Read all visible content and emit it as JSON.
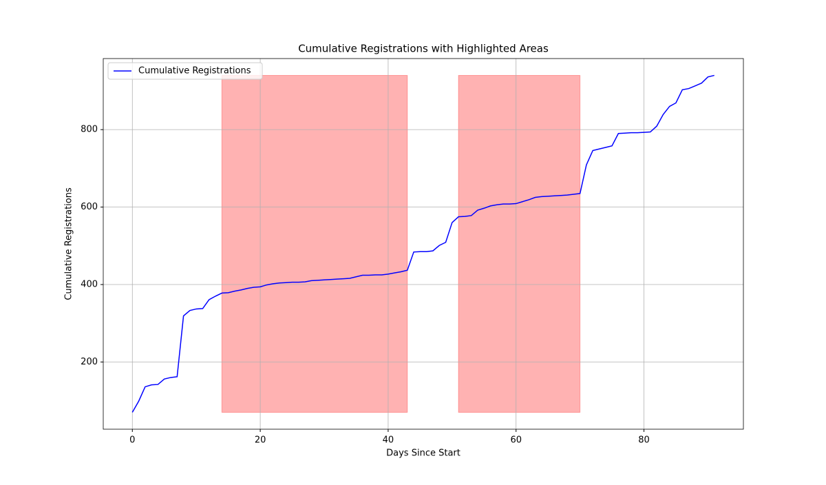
{
  "chart_data": {
    "type": "line",
    "title": "Cumulative Registrations with Highlighted Areas",
    "xlabel": "Days Since Start",
    "ylabel": "Cumulative Registrations",
    "x": [
      0,
      1,
      2,
      3,
      4,
      5,
      6,
      7,
      8,
      9,
      10,
      11,
      12,
      13,
      14,
      15,
      16,
      17,
      18,
      19,
      20,
      21,
      22,
      23,
      24,
      25,
      26,
      27,
      28,
      29,
      30,
      31,
      32,
      33,
      34,
      35,
      36,
      37,
      38,
      39,
      40,
      41,
      42,
      43,
      44,
      45,
      46,
      47,
      48,
      49,
      50,
      51,
      52,
      53,
      54,
      55,
      56,
      57,
      58,
      59,
      60,
      61,
      62,
      63,
      64,
      65,
      66,
      67,
      68,
      69,
      70,
      71,
      72,
      73,
      74,
      75,
      76,
      77,
      78,
      79,
      80,
      81,
      82,
      83,
      84,
      85,
      86,
      87,
      88,
      89,
      90,
      91
    ],
    "series": [
      {
        "name": "Cumulative Registrations",
        "color": "#0000ff",
        "values": [
          70,
          99,
          136,
          141,
          142,
          156,
          160,
          162,
          319,
          333,
          337,
          338,
          361,
          370,
          378,
          379,
          383,
          386,
          390,
          393,
          394,
          399,
          402,
          404,
          405,
          406,
          406,
          407,
          410,
          411,
          412,
          413,
          414,
          415,
          416,
          420,
          424,
          424,
          425,
          425,
          427,
          430,
          433,
          437,
          484,
          485,
          485,
          487,
          501,
          509,
          560,
          575,
          576,
          578,
          592,
          597,
          603,
          606,
          608,
          608,
          609,
          614,
          619,
          625,
          627,
          628,
          629,
          630,
          631,
          633,
          635,
          709,
          746,
          750,
          754,
          758,
          790,
          791,
          792,
          792,
          793,
          794,
          809,
          839,
          860,
          869,
          903,
          906,
          913,
          920,
          936,
          940
        ]
      }
    ],
    "highlights": [
      {
        "x": [
          14,
          43
        ],
        "y": [
          70,
          940
        ]
      },
      {
        "x": [
          51,
          70
        ],
        "y": [
          70,
          940
        ]
      }
    ],
    "highlight_color": "#ff0000",
    "xlim": [
      -4.55,
      95.55
    ],
    "ylim": [
      26.5,
      983.5
    ],
    "xticks": [
      0,
      20,
      40,
      60,
      80
    ],
    "yticks": [
      200,
      400,
      600,
      800
    ],
    "grid": true,
    "legend": "upper left"
  }
}
